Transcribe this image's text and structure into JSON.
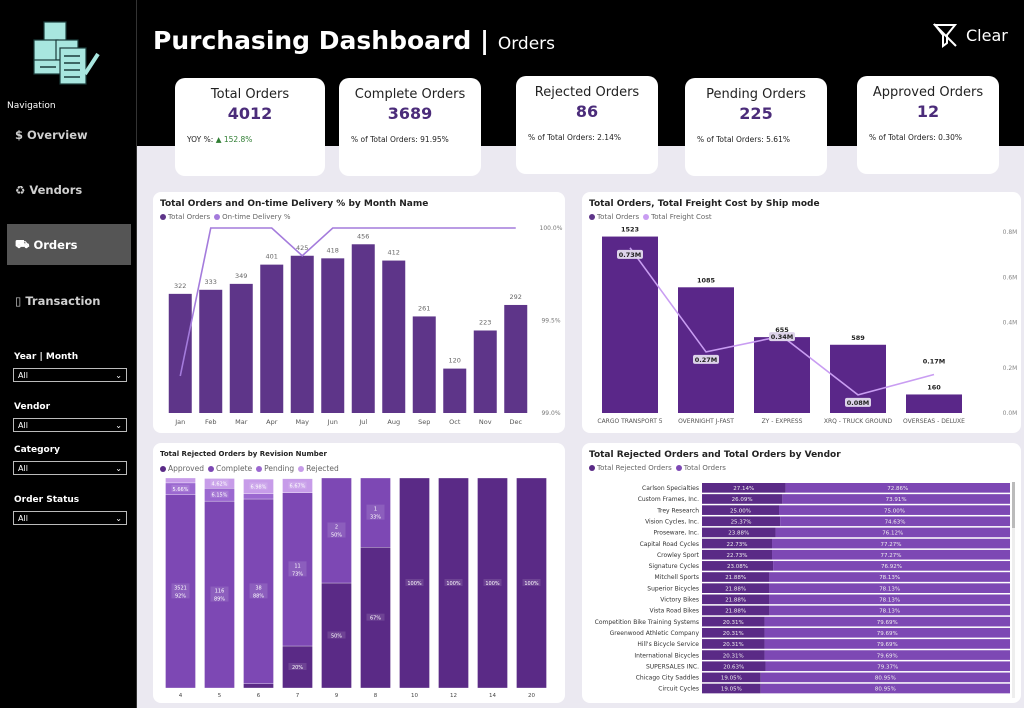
{
  "sidebar": {
    "navigation_label": "Navigation",
    "items": [
      {
        "icon": "dollar-icon",
        "glyph": "$",
        "label": "Overview",
        "active": false
      },
      {
        "icon": "recycle-icon",
        "glyph": "♻",
        "label": "Vendors",
        "active": false
      },
      {
        "icon": "truck-icon",
        "glyph": "⛟",
        "label": "Orders",
        "active": true
      },
      {
        "icon": "box-icon",
        "glyph": "▯",
        "label": "Transaction",
        "active": false
      }
    ],
    "filters": [
      {
        "label": "Year | Month",
        "value": "All"
      },
      {
        "label": "Vendor",
        "value": "All"
      },
      {
        "label": "Category",
        "value": "All"
      },
      {
        "label": "Order Status",
        "value": "All"
      }
    ]
  },
  "header": {
    "title": "Purchasing Dashboard",
    "separator": "|",
    "subtitle": "Orders",
    "clear_label": "Clear"
  },
  "kpis": [
    {
      "title": "Total Orders",
      "value": "4012",
      "sub_label": "YOY %:",
      "sub_value": "▲ 152.8%"
    },
    {
      "title": "Complete Orders",
      "value": "3689",
      "sub_label": "% of Total Orders: 91.95%",
      "sub_value": ""
    },
    {
      "title": "Rejected Orders",
      "value": "86",
      "sub_label": "% of Total Orders: 2.14%",
      "sub_value": ""
    },
    {
      "title": "Pending Orders",
      "value": "225",
      "sub_label": "% of Total Orders: 5.61%",
      "sub_value": ""
    },
    {
      "title": "Approved Orders",
      "value": "12",
      "sub_label": "% of Total Orders: 0.30%",
      "sub_value": ""
    }
  ],
  "colors": {
    "approved": "#5a2a86",
    "complete": "#7d48b4",
    "pending": "#9b68d0",
    "rejected": "#c79ce9",
    "bar": "#5e3589",
    "line": "#a47bdc",
    "freight_line": "#c99df2",
    "accent_text": "#4b2c7a"
  },
  "chart_data": [
    {
      "type": "bar",
      "title": "Total Orders and On-time Delivery % by Month Name",
      "legend": [
        "Total Orders",
        "On-time Delivery %"
      ],
      "categories": [
        "Jan",
        "Feb",
        "Mar",
        "Apr",
        "May",
        "Jun",
        "Jul",
        "Aug",
        "Sep",
        "Oct",
        "Nov",
        "Dec"
      ],
      "series": [
        {
          "name": "Total Orders",
          "values": [
            322,
            333,
            349,
            401,
            425,
            418,
            456,
            412,
            261,
            120,
            223,
            292
          ]
        },
        {
          "name": "On-time Delivery %",
          "type": "line",
          "axis": "right",
          "values": [
            99.2,
            100,
            100,
            100,
            99.85,
            100,
            100,
            100,
            100,
            100,
            100,
            100
          ]
        }
      ],
      "ylim": [
        0,
        500
      ],
      "y2lim": [
        99.0,
        100.0
      ],
      "y2ticks": [
        "100.0%",
        "99.5%",
        "99.0%"
      ],
      "legend_position": "top-left",
      "grid": false
    },
    {
      "type": "bar",
      "title": "Total Orders, Total Freight Cost by Ship mode",
      "legend": [
        "Total Orders",
        "Total Freight Cost"
      ],
      "categories": [
        "CARGO TRANSPORT 5",
        "OVERNIGHT J-FAST",
        "ZY - EXPRESS",
        "XRQ - TRUCK GROUND",
        "OVERSEAS - DELUXE"
      ],
      "series": [
        {
          "name": "Total Orders",
          "values": [
            1523,
            1085,
            655,
            589,
            160
          ]
        },
        {
          "name": "Total Freight Cost",
          "type": "line",
          "axis": "right",
          "values": [
            0.73,
            0.27,
            0.34,
            0.08,
            0.17
          ],
          "labels": [
            "0.73M",
            "0.27M",
            "0.34M",
            "0.08M",
            "0.17M"
          ]
        }
      ],
      "y2lim": [
        0,
        0.8
      ],
      "y2ticks": [
        "0.8M",
        "0.6M",
        "0.4M",
        "0.2M",
        "0.0M"
      ],
      "legend_position": "top-left",
      "grid": false
    },
    {
      "type": "bar",
      "stacked": "100%",
      "title": "Total Rejected Orders by Revision Number",
      "legend": [
        "Approved",
        "Complete",
        "Pending",
        "Rejected"
      ],
      "categories": [
        "4",
        "5",
        "6",
        "7",
        "9",
        "8",
        "10",
        "12",
        "14",
        "20"
      ],
      "series": [
        {
          "name": "Approved",
          "values": [
            0,
            0,
            2,
            20,
            50,
            67,
            100,
            100,
            100,
            100
          ],
          "labels": [
            "",
            "",
            "",
            "20%",
            "50%",
            "67%",
            "100%",
            "100%",
            "100%",
            "100%"
          ]
        },
        {
          "name": "Complete",
          "values": [
            92,
            89,
            88,
            73,
            50,
            33,
            0,
            0,
            0,
            0
          ],
          "labels": [
            "3521\n92%",
            "116\n89%",
            "38\n88%",
            "11\n73%",
            "2\n50%",
            "1\n33%",
            "",
            "",
            "",
            ""
          ]
        },
        {
          "name": "Pending",
          "values": [
            5.66,
            6.15,
            2.5,
            0,
            0,
            0,
            0,
            0,
            0,
            0
          ],
          "labels": [
            "5.66%",
            "6.15%",
            "",
            "",
            "",
            "",
            "",
            "",
            "",
            ""
          ]
        },
        {
          "name": "Rejected",
          "values": [
            2.34,
            4.62,
            6.98,
            6.67,
            0,
            0,
            0,
            0,
            0,
            0
          ],
          "labels": [
            "",
            "4.62%",
            "6.98%",
            "6.67%",
            "",
            "",
            "",
            "",
            "",
            ""
          ]
        }
      ],
      "legend_position": "top-left"
    },
    {
      "type": "bar",
      "orientation": "horizontal",
      "stacked": "100%",
      "title": "Total Rejected Orders and Total Orders by Vendor",
      "legend": [
        "Total Rejected Orders",
        "Total Orders"
      ],
      "categories": [
        "Carlson Specialties",
        "Custom Frames, Inc.",
        "Trey Research",
        "Vision Cycles, Inc.",
        "Proseware, Inc.",
        "Capital Road Cycles",
        "Crowley Sport",
        "Signature Cycles",
        "Mitchell Sports",
        "Superior Bicycles",
        "Victory Bikes",
        "Vista Road Bikes",
        "Competition Bike Training Systems",
        "Greenwood Athletic Company",
        "Hill's Bicycle Service",
        "International Bicycles",
        "SUPERSALES INC.",
        "Chicago City Saddles",
        "Circuit Cycles"
      ],
      "series": [
        {
          "name": "Total Rejected Orders",
          "values": [
            27.14,
            26.09,
            25.0,
            25.37,
            23.88,
            22.73,
            22.73,
            23.08,
            21.88,
            21.88,
            21.88,
            21.88,
            20.31,
            20.31,
            20.31,
            20.31,
            20.63,
            19.05,
            19.05
          ]
        },
        {
          "name": "Total Orders",
          "values": [
            72.86,
            73.91,
            75.0,
            74.63,
            76.12,
            77.27,
            77.27,
            76.92,
            78.13,
            78.13,
            78.13,
            78.13,
            79.69,
            79.69,
            79.69,
            79.69,
            79.37,
            80.95,
            80.95
          ]
        }
      ],
      "legend_position": "top-left"
    }
  ]
}
